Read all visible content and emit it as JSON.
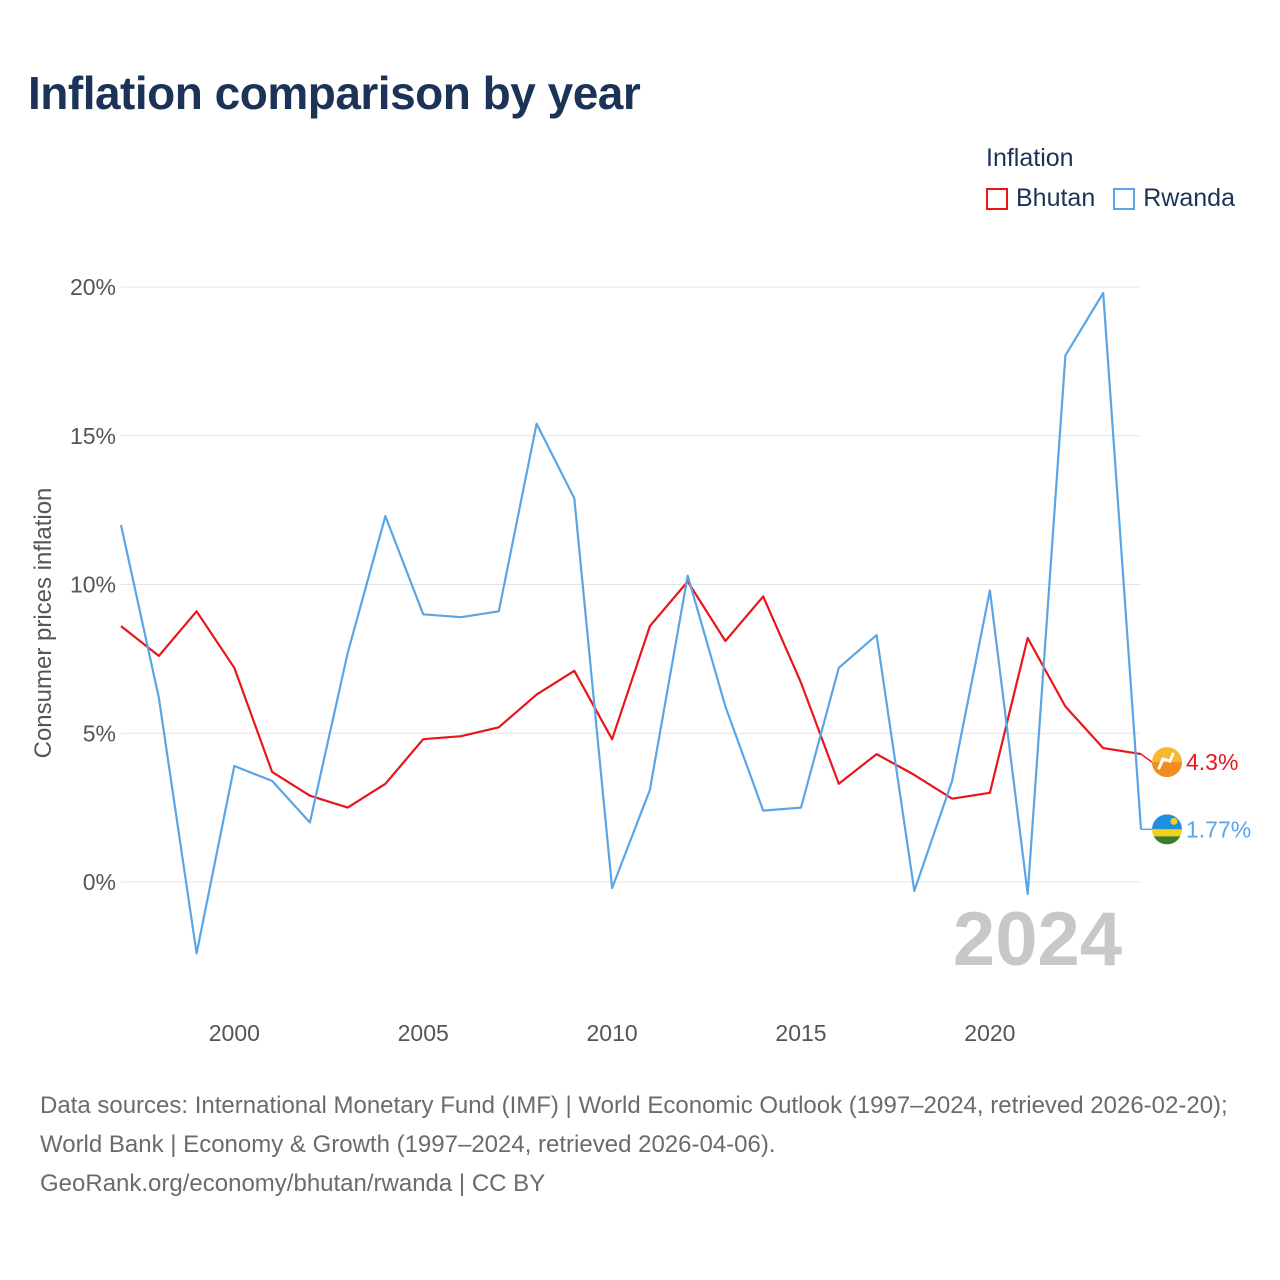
{
  "title": "Inflation comparison by year",
  "legend": {
    "title": "Inflation",
    "items": [
      {
        "label": "Bhutan",
        "color": "#e8161b"
      },
      {
        "label": "Rwanda",
        "color": "#5aa5e6"
      }
    ]
  },
  "chart_data": {
    "type": "line",
    "title": "Inflation comparison by year",
    "xlabel": "",
    "ylabel": "Consumer prices inflation",
    "xlim": [
      1997,
      2024
    ],
    "ylim": [
      -4,
      20
    ],
    "x_ticks": [
      2000,
      2005,
      2010,
      2015,
      2020
    ],
    "y_ticks": [
      {
        "value": 0,
        "label": "0%"
      },
      {
        "value": 5,
        "label": "5%"
      },
      {
        "value": 10,
        "label": "10%"
      },
      {
        "value": 15,
        "label": "15%"
      },
      {
        "value": 20,
        "label": "20%"
      }
    ],
    "grid": true,
    "current_year": "2024",
    "x": [
      1997,
      1998,
      1999,
      2000,
      2001,
      2002,
      2003,
      2004,
      2005,
      2006,
      2007,
      2008,
      2009,
      2010,
      2011,
      2012,
      2013,
      2014,
      2015,
      2016,
      2017,
      2018,
      2019,
      2020,
      2021,
      2022,
      2023,
      2024
    ],
    "series": [
      {
        "name": "Bhutan",
        "color": "#e8161b",
        "values": [
          8.6,
          7.6,
          9.1,
          7.2,
          3.7,
          2.9,
          2.5,
          3.3,
          4.8,
          4.9,
          5.2,
          6.3,
          7.1,
          4.8,
          8.6,
          10.1,
          8.1,
          9.6,
          6.7,
          3.3,
          4.3,
          3.6,
          2.8,
          3.0,
          8.2,
          5.9,
          4.5,
          4.3
        ],
        "end_label": "4.3%"
      },
      {
        "name": "Rwanda",
        "color": "#5aa5e6",
        "values": [
          12.0,
          6.2,
          -2.4,
          3.9,
          3.4,
          2.0,
          7.7,
          12.3,
          9.0,
          8.9,
          9.1,
          15.4,
          12.9,
          -0.2,
          3.1,
          10.3,
          5.9,
          2.4,
          2.5,
          7.2,
          8.3,
          -0.3,
          3.4,
          9.8,
          -0.4,
          17.7,
          19.8,
          1.77
        ],
        "end_label": "1.77%"
      }
    ]
  },
  "footer": {
    "sources": "Data sources: International Monetary Fund (IMF) | World Economic Outlook (1997–2024, retrieved 2026-02-20); World Bank | Economy & Growth (1997–2024, retrieved 2026-04-06).",
    "credit": "GeoRank.org/economy/bhutan/rwanda | CC BY"
  }
}
